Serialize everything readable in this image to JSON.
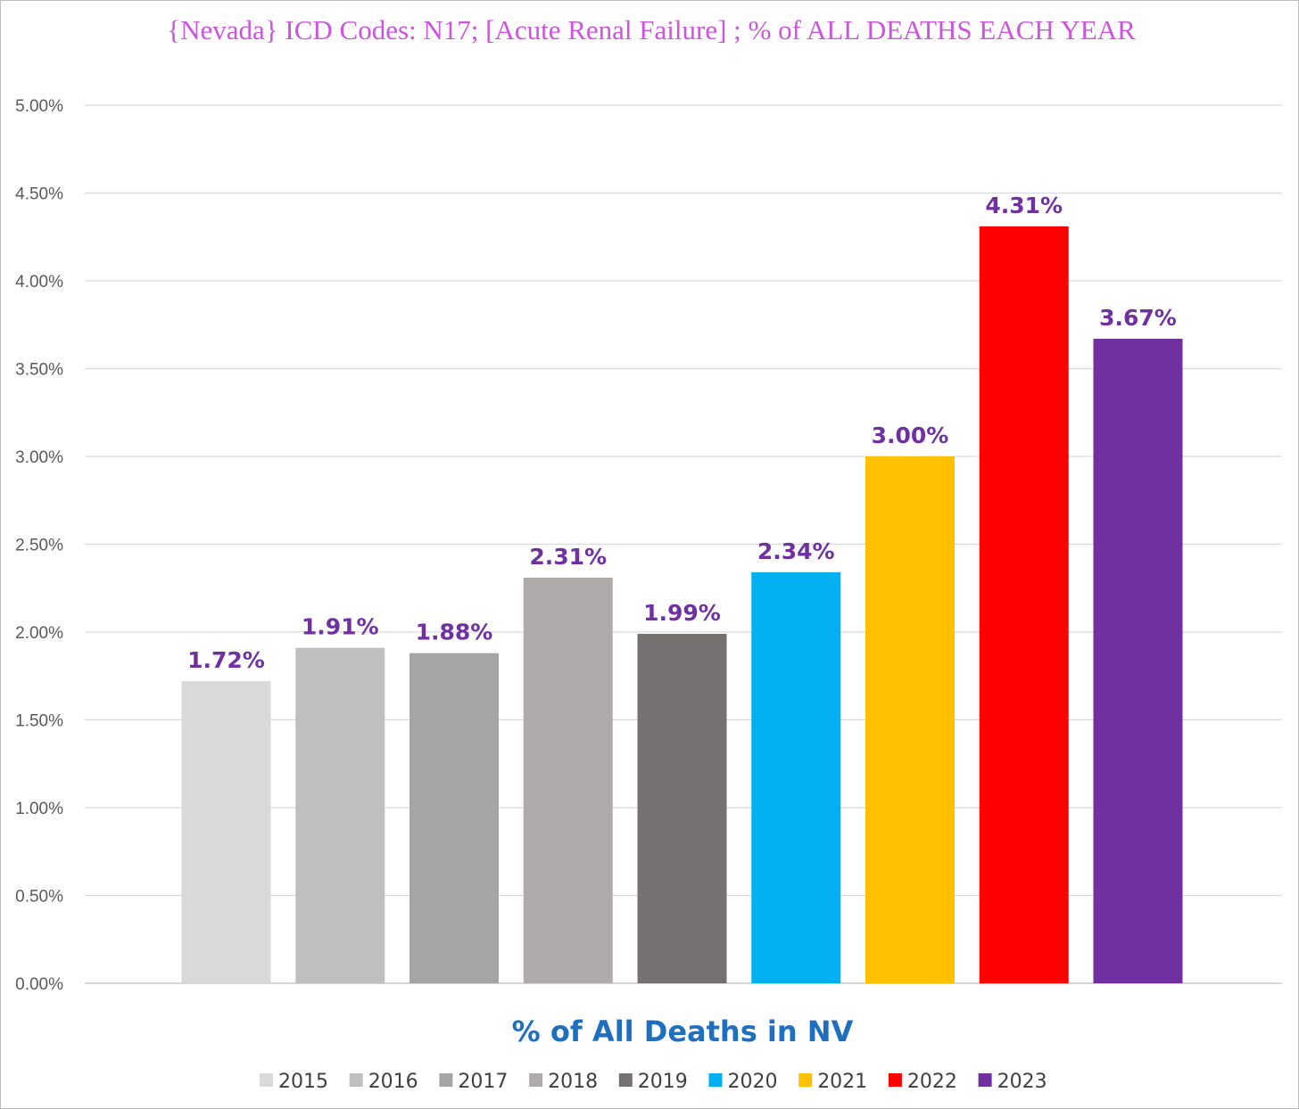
{
  "chart_data": {
    "type": "bar",
    "title": "{Nevada}   ICD Codes: N17;  [Acute Renal Failure] ; % of ALL DEATHS EACH YEAR",
    "xlabel": "% of All Deaths in NV",
    "ylabel": "",
    "ylim": [
      0,
      5
    ],
    "ytick_values": [
      0,
      0.5,
      1,
      1.5,
      2,
      2.5,
      3,
      3.5,
      4,
      4.5,
      5
    ],
    "ytick_labels": [
      "0.00%",
      "0.50%",
      "1.00%",
      "1.50%",
      "2.00%",
      "2.50%",
      "3.00%",
      "3.50%",
      "4.00%",
      "4.50%",
      "5.00%"
    ],
    "grid": true,
    "legend_position": "bottom",
    "series": [
      {
        "name": "2015",
        "value": 1.72,
        "label": "1.72%",
        "color": "#d9d9d9"
      },
      {
        "name": "2016",
        "value": 1.91,
        "label": "1.91%",
        "color": "#bfbfbf"
      },
      {
        "name": "2017",
        "value": 1.88,
        "label": "1.88%",
        "color": "#a5a5a5"
      },
      {
        "name": "2018",
        "value": 2.31,
        "label": "2.31%",
        "color": "#afabab"
      },
      {
        "name": "2019",
        "value": 1.99,
        "label": "1.99%",
        "color": "#767171"
      },
      {
        "name": "2020",
        "value": 2.34,
        "label": "2.34%",
        "color": "#00b0f0"
      },
      {
        "name": "2021",
        "value": 3.0,
        "label": "3.00%",
        "color": "#ffc000"
      },
      {
        "name": "2022",
        "value": 4.31,
        "label": "4.31%",
        "color": "#ff0000"
      },
      {
        "name": "2023",
        "value": 3.67,
        "label": "3.67%",
        "color": "#7030a0"
      }
    ]
  }
}
